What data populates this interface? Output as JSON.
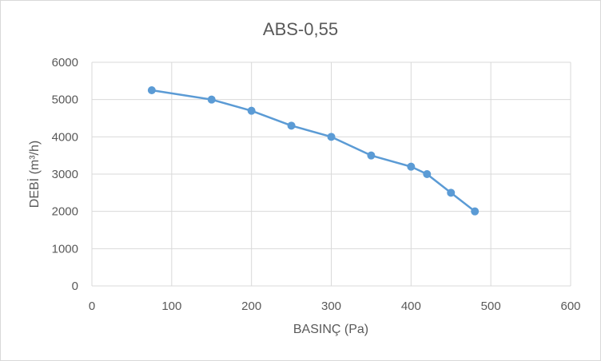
{
  "chart_data": {
    "type": "scatter",
    "title": "ABS-0,55",
    "xlabel": "BASINÇ (Pa)",
    "ylabel": "DEBİ (m³/h)",
    "xlim": [
      0,
      600
    ],
    "ylim": [
      0,
      6000
    ],
    "x_ticks": [
      "0",
      "100",
      "200",
      "300",
      "400",
      "500",
      "600"
    ],
    "y_ticks": [
      "0",
      "1000",
      "2000",
      "3000",
      "4000",
      "5000",
      "6000"
    ],
    "grid": true,
    "legend": "none",
    "series": [
      {
        "color": "#5b9bd5",
        "points": [
          {
            "x": 75,
            "y": 5250
          },
          {
            "x": 150,
            "y": 5000
          },
          {
            "x": 200,
            "y": 4700
          },
          {
            "x": 250,
            "y": 4300
          },
          {
            "x": 300,
            "y": 4000
          },
          {
            "x": 350,
            "y": 3500
          },
          {
            "x": 400,
            "y": 3200
          },
          {
            "x": 420,
            "y": 3000
          },
          {
            "x": 450,
            "y": 2500
          },
          {
            "x": 480,
            "y": 2000
          }
        ]
      }
    ]
  }
}
